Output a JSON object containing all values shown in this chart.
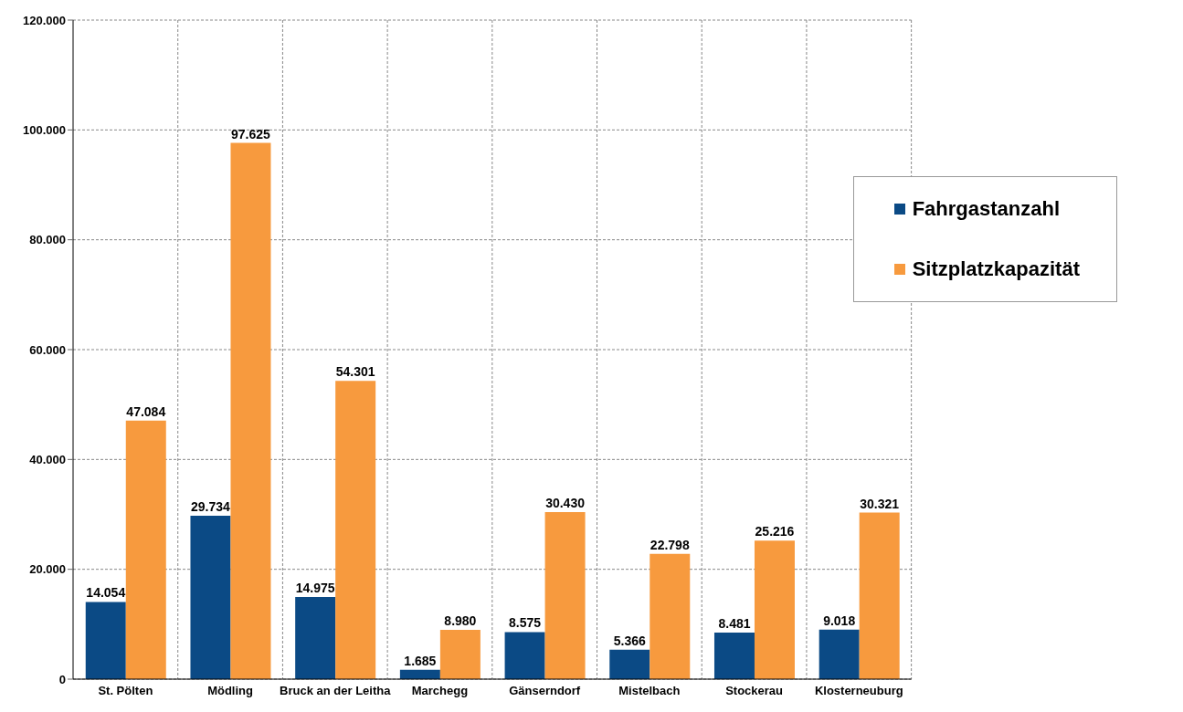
{
  "chart_data": {
    "type": "bar",
    "categories": [
      "St. Pölten",
      "Mödling",
      "Bruck an der Leitha",
      "Marchegg",
      "Gänserndorf",
      "Mistelbach",
      "Stockerau",
      "Klosterneuburg"
    ],
    "series": [
      {
        "name": "Fahrgastanzahl",
        "color": "#0b4a85",
        "values": [
          14054,
          29734,
          14975,
          1685,
          8575,
          5366,
          8481,
          9018
        ],
        "value_labels": [
          "14.054",
          "29.734",
          "14.975",
          "1.685",
          "8.575",
          "5.366",
          "8.481",
          "9.018"
        ]
      },
      {
        "name": "Sitzplatzkapazität",
        "color": "#f79a3e",
        "values": [
          47084,
          97625,
          54301,
          8980,
          30430,
          22798,
          25216,
          30321
        ],
        "value_labels": [
          "47.084",
          "97.625",
          "54.301",
          "8.980",
          "30.430",
          "22.798",
          "25.216",
          "30.321"
        ]
      }
    ],
    "ylim": [
      0,
      120000
    ],
    "yticks": [
      {
        "value": 0,
        "label": "0"
      },
      {
        "value": 20000,
        "label": "20.000"
      },
      {
        "value": 40000,
        "label": "40.000"
      },
      {
        "value": 60000,
        "label": "60.000"
      },
      {
        "value": 80000,
        "label": "80.000"
      },
      {
        "value": 100000,
        "label": "100.000"
      },
      {
        "value": 120000,
        "label": "120.000"
      }
    ],
    "grid": true,
    "legend": "top right"
  }
}
